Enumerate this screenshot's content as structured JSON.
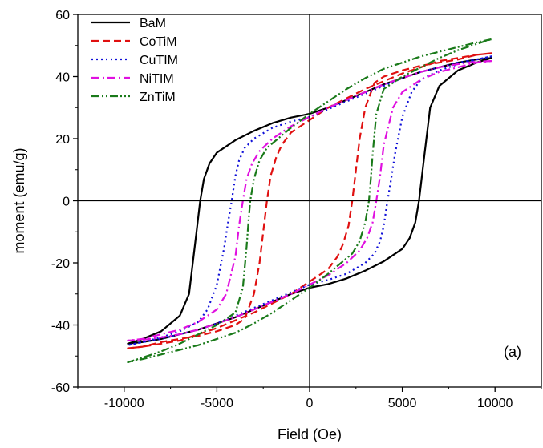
{
  "chart_data": {
    "type": "line",
    "title": "",
    "xlabel": "Field (Oe)",
    "ylabel": "moment (emu/g)",
    "xlim": [
      -12500,
      12500
    ],
    "ylim": [
      -60,
      60
    ],
    "x_ticks": [
      -10000,
      -5000,
      0,
      5000,
      10000
    ],
    "y_ticks": [
      -60,
      -40,
      -20,
      0,
      20,
      40,
      60
    ],
    "x_tick_labels": [
      "-10000",
      "-5000",
      "0",
      "5000",
      "10000"
    ],
    "y_tick_labels": [
      "-60",
      "-40",
      "-20",
      "0",
      "20",
      "40",
      "60"
    ],
    "grid": false,
    "zero_lines": true,
    "legend_position": "top-left",
    "annotation": "(a)",
    "series": [
      {
        "name": "BaM",
        "color": "#000000",
        "dash": "solid",
        "ms": 46,
        "coercivity": 5900,
        "remanence": 28,
        "upper_branch": [
          [
            -9800,
            -46
          ],
          [
            -9000,
            -44.5
          ],
          [
            -8000,
            -42
          ],
          [
            -7000,
            -37
          ],
          [
            -6500,
            -30
          ],
          [
            -6200,
            -15
          ],
          [
            -6000,
            -5
          ],
          [
            -5900,
            0
          ],
          [
            -5700,
            7
          ],
          [
            -5400,
            12
          ],
          [
            -5000,
            15.5
          ],
          [
            -4000,
            19.5
          ],
          [
            -3000,
            22.5
          ],
          [
            -2000,
            25
          ],
          [
            -1000,
            26.8
          ],
          [
            0,
            28
          ],
          [
            1000,
            30
          ],
          [
            2000,
            32.5
          ],
          [
            3000,
            35
          ],
          [
            4000,
            37.5
          ],
          [
            5000,
            39.5
          ],
          [
            6000,
            41.5
          ],
          [
            7000,
            43
          ],
          [
            8000,
            44.5
          ],
          [
            9000,
            45.5
          ],
          [
            9800,
            46
          ]
        ],
        "lower_branch": [
          [
            -9800,
            -46
          ],
          [
            -9000,
            -45.5
          ],
          [
            -8000,
            -44.5
          ],
          [
            -7000,
            -43
          ],
          [
            -6000,
            -41.5
          ],
          [
            -5000,
            -39.5
          ],
          [
            -4000,
            -37.5
          ],
          [
            -3000,
            -35
          ],
          [
            -2000,
            -32.5
          ],
          [
            -1000,
            -30
          ],
          [
            0,
            -28
          ],
          [
            1000,
            -26.8
          ],
          [
            2000,
            -25
          ],
          [
            3000,
            -22.5
          ],
          [
            4000,
            -19.5
          ],
          [
            5000,
            -15.5
          ],
          [
            5400,
            -12
          ],
          [
            5700,
            -7
          ],
          [
            5900,
            0
          ],
          [
            6000,
            5
          ],
          [
            6200,
            15
          ],
          [
            6500,
            30
          ],
          [
            7000,
            37
          ],
          [
            8000,
            42
          ],
          [
            9000,
            44.5
          ],
          [
            9800,
            46
          ]
        ]
      },
      {
        "name": "CoTiM",
        "color": "#e01010",
        "dash": "dashed",
        "ms": 47.5,
        "coercivity": 2300,
        "remanence": 26,
        "upper_branch": [
          [
            -9800,
            -47.5
          ],
          [
            -9000,
            -47
          ],
          [
            -8000,
            -45.5
          ],
          [
            -7000,
            -44.5
          ],
          [
            -6000,
            -43.5
          ],
          [
            -5000,
            -42
          ],
          [
            -4000,
            -40
          ],
          [
            -3500,
            -38
          ],
          [
            -3000,
            -30
          ],
          [
            -2700,
            -20
          ],
          [
            -2500,
            -10
          ],
          [
            -2300,
            0
          ],
          [
            -2100,
            8
          ],
          [
            -1800,
            14
          ],
          [
            -1500,
            18
          ],
          [
            -1000,
            22
          ],
          [
            0,
            26
          ],
          [
            1000,
            30
          ],
          [
            2000,
            33
          ],
          [
            3000,
            36
          ],
          [
            4000,
            38.5
          ],
          [
            5000,
            41
          ],
          [
            6000,
            43
          ],
          [
            7000,
            45
          ],
          [
            8000,
            46
          ],
          [
            9000,
            47
          ],
          [
            9800,
            47.5
          ]
        ],
        "lower_branch": [
          [
            -9800,
            -47.5
          ],
          [
            -9000,
            -47
          ],
          [
            -8000,
            -46
          ],
          [
            -7000,
            -45
          ],
          [
            -6000,
            -43
          ],
          [
            -5000,
            -41
          ],
          [
            -4000,
            -38.5
          ],
          [
            -3000,
            -36
          ],
          [
            -2000,
            -33
          ],
          [
            -1000,
            -30
          ],
          [
            0,
            -26
          ],
          [
            1000,
            -22
          ],
          [
            1500,
            -18
          ],
          [
            1800,
            -14
          ],
          [
            2100,
            -8
          ],
          [
            2300,
            0
          ],
          [
            2500,
            10
          ],
          [
            2700,
            20
          ],
          [
            3000,
            30
          ],
          [
            3500,
            38
          ],
          [
            4000,
            40
          ],
          [
            5000,
            42
          ],
          [
            6000,
            43.5
          ],
          [
            7000,
            44.5
          ],
          [
            8000,
            45.5
          ],
          [
            9000,
            47
          ],
          [
            9800,
            47.5
          ]
        ]
      },
      {
        "name": "CuTIM",
        "color": "#1010d8",
        "dash": "dotted",
        "ms": 46.5,
        "coercivity": 4200,
        "remanence": 27,
        "upper_branch": [
          [
            -9800,
            -46.5
          ],
          [
            -9000,
            -45.5
          ],
          [
            -8000,
            -44
          ],
          [
            -7000,
            -42
          ],
          [
            -6000,
            -39
          ],
          [
            -5500,
            -35
          ],
          [
            -5000,
            -27
          ],
          [
            -4600,
            -15
          ],
          [
            -4400,
            -7
          ],
          [
            -4200,
            0
          ],
          [
            -4000,
            8
          ],
          [
            -3800,
            13
          ],
          [
            -3500,
            17
          ],
          [
            -3000,
            20
          ],
          [
            -2000,
            23.5
          ],
          [
            -1000,
            25.5
          ],
          [
            0,
            27
          ],
          [
            1000,
            29.5
          ],
          [
            2000,
            32
          ],
          [
            3000,
            34.5
          ],
          [
            4000,
            37
          ],
          [
            5000,
            39.5
          ],
          [
            6000,
            41.5
          ],
          [
            7000,
            43
          ],
          [
            8000,
            44.5
          ],
          [
            9000,
            45.5
          ],
          [
            9800,
            46.5
          ]
        ],
        "lower_branch": [
          [
            -9800,
            -46.5
          ],
          [
            -9000,
            -45.5
          ],
          [
            -8000,
            -44.5
          ],
          [
            -7000,
            -43
          ],
          [
            -6000,
            -41.5
          ],
          [
            -5000,
            -39.5
          ],
          [
            -4000,
            -37
          ],
          [
            -3000,
            -34.5
          ],
          [
            -2000,
            -32
          ],
          [
            -1000,
            -29.5
          ],
          [
            0,
            -27
          ],
          [
            1000,
            -25.5
          ],
          [
            2000,
            -23.5
          ],
          [
            3000,
            -20
          ],
          [
            3500,
            -17
          ],
          [
            3800,
            -13
          ],
          [
            4000,
            -8
          ],
          [
            4200,
            0
          ],
          [
            4400,
            7
          ],
          [
            4600,
            15
          ],
          [
            5000,
            27
          ],
          [
            5500,
            35
          ],
          [
            6000,
            39
          ],
          [
            7000,
            42
          ],
          [
            8000,
            44
          ],
          [
            9000,
            45.5
          ],
          [
            9800,
            46.5
          ]
        ]
      },
      {
        "name": "NiTIM",
        "color": "#e010e0",
        "dash": "dashdot",
        "ms": 45,
        "coercivity": 3600,
        "remanence": 27,
        "upper_branch": [
          [
            -9800,
            -45
          ],
          [
            -9000,
            -44.5
          ],
          [
            -8000,
            -43
          ],
          [
            -7000,
            -41.5
          ],
          [
            -6000,
            -39
          ],
          [
            -5000,
            -35
          ],
          [
            -4500,
            -30
          ],
          [
            -4000,
            -18
          ],
          [
            -3800,
            -8
          ],
          [
            -3600,
            0
          ],
          [
            -3400,
            7
          ],
          [
            -3100,
            12
          ],
          [
            -2700,
            16
          ],
          [
            -2000,
            20
          ],
          [
            -1000,
            24
          ],
          [
            0,
            27
          ],
          [
            1000,
            30
          ],
          [
            2000,
            32.5
          ],
          [
            3000,
            35
          ],
          [
            4000,
            37.5
          ],
          [
            5000,
            39.5
          ],
          [
            6000,
            41.5
          ],
          [
            7000,
            43
          ],
          [
            8000,
            44
          ],
          [
            9000,
            44.8
          ],
          [
            9800,
            45
          ]
        ],
        "lower_branch": [
          [
            -9800,
            -45
          ],
          [
            -9000,
            -44.8
          ],
          [
            -8000,
            -44
          ],
          [
            -7000,
            -43
          ],
          [
            -6000,
            -41.5
          ],
          [
            -5000,
            -39.5
          ],
          [
            -4000,
            -37.5
          ],
          [
            -3000,
            -35
          ],
          [
            -2000,
            -32.5
          ],
          [
            -1000,
            -30
          ],
          [
            0,
            -27
          ],
          [
            1000,
            -24
          ],
          [
            2000,
            -20
          ],
          [
            2700,
            -16
          ],
          [
            3100,
            -12
          ],
          [
            3400,
            -7
          ],
          [
            3600,
            0
          ],
          [
            3800,
            8
          ],
          [
            4000,
            18
          ],
          [
            4500,
            30
          ],
          [
            5000,
            35
          ],
          [
            6000,
            39
          ],
          [
            7000,
            41.5
          ],
          [
            8000,
            43
          ],
          [
            9000,
            44.5
          ],
          [
            9800,
            45
          ]
        ]
      },
      {
        "name": "ZnTiM",
        "color": "#1a7a1a",
        "dash": "dashdotdot",
        "ms": 52,
        "coercivity": 3200,
        "remanence": 28,
        "upper_branch": [
          [
            -9800,
            -52
          ],
          [
            -9000,
            -50.5
          ],
          [
            -8000,
            -48.5
          ],
          [
            -7000,
            -46
          ],
          [
            -6000,
            -43
          ],
          [
            -5000,
            -40
          ],
          [
            -4000,
            -36
          ],
          [
            -3600,
            -28
          ],
          [
            -3400,
            -15
          ],
          [
            -3300,
            -7
          ],
          [
            -3200,
            0
          ],
          [
            -3000,
            7
          ],
          [
            -2700,
            13
          ],
          [
            -2300,
            17
          ],
          [
            -1500,
            21
          ],
          [
            -1000,
            23.5
          ],
          [
            0,
            28
          ],
          [
            1000,
            32
          ],
          [
            2000,
            36
          ],
          [
            3000,
            39.5
          ],
          [
            4000,
            42.5
          ],
          [
            5000,
            44.5
          ],
          [
            6000,
            46.5
          ],
          [
            7000,
            48
          ],
          [
            8000,
            49.5
          ],
          [
            9000,
            51
          ],
          [
            9800,
            52
          ]
        ],
        "lower_branch": [
          [
            -9800,
            -52
          ],
          [
            -9000,
            -51
          ],
          [
            -8000,
            -49.5
          ],
          [
            -7000,
            -48
          ],
          [
            -6000,
            -46.5
          ],
          [
            -5000,
            -44.5
          ],
          [
            -4000,
            -42.5
          ],
          [
            -3000,
            -39.5
          ],
          [
            -2000,
            -36
          ],
          [
            -1000,
            -32
          ],
          [
            0,
            -28
          ],
          [
            1000,
            -23.5
          ],
          [
            1500,
            -21
          ],
          [
            2300,
            -17
          ],
          [
            2700,
            -13
          ],
          [
            3000,
            -7
          ],
          [
            3200,
            0
          ],
          [
            3300,
            7
          ],
          [
            3400,
            15
          ],
          [
            3600,
            28
          ],
          [
            4000,
            36
          ],
          [
            5000,
            40
          ],
          [
            6000,
            43
          ],
          [
            7000,
            46
          ],
          [
            8000,
            48.5
          ],
          [
            9000,
            50.5
          ],
          [
            9800,
            52
          ]
        ]
      }
    ]
  }
}
